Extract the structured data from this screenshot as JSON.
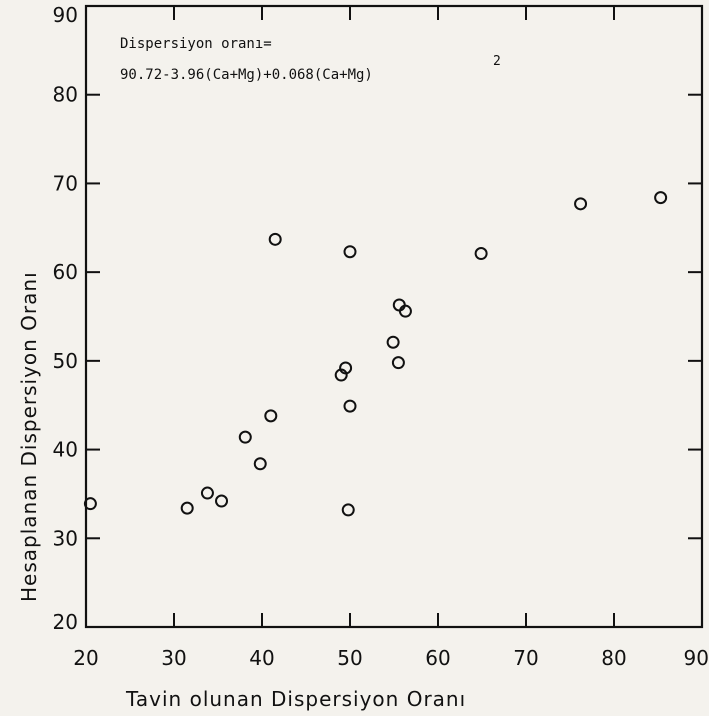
{
  "chart_data": {
    "type": "scatter",
    "title": "",
    "xlabel": "Tavin olunan Dispersiyon Oranı",
    "ylabel": "Hesaplanan Dispersiyon Oranı",
    "xlim": [
      20,
      90
    ],
    "ylim": [
      20,
      90
    ],
    "x_ticks": [
      "20",
      "30",
      "40",
      "50",
      "60",
      "70",
      "80",
      "90"
    ],
    "y_ticks": [
      "20",
      "30",
      "40",
      "50",
      "60",
      "70",
      "80",
      "90"
    ],
    "grid": false,
    "legend": "none",
    "annotation": {
      "line1": "Dispersiyon oranı=",
      "line2": "90.72-3.96(Ca+Mg)+0.068(Ca+Mg)",
      "exponent": "2"
    },
    "points": [
      {
        "x": 20.5,
        "y": 33.9
      },
      {
        "x": 31.5,
        "y": 33.4
      },
      {
        "x": 33.8,
        "y": 35.1
      },
      {
        "x": 35.4,
        "y": 34.2
      },
      {
        "x": 38.1,
        "y": 41.4
      },
      {
        "x": 39.8,
        "y": 38.4
      },
      {
        "x": 41.0,
        "y": 43.8
      },
      {
        "x": 41.5,
        "y": 63.7
      },
      {
        "x": 49.0,
        "y": 48.4
      },
      {
        "x": 49.5,
        "y": 49.2
      },
      {
        "x": 49.8,
        "y": 33.2
      },
      {
        "x": 50.0,
        "y": 44.9
      },
      {
        "x": 50.0,
        "y": 62.3
      },
      {
        "x": 54.9,
        "y": 52.1
      },
      {
        "x": 55.5,
        "y": 49.8
      },
      {
        "x": 55.6,
        "y": 56.3
      },
      {
        "x": 56.3,
        "y": 55.6
      },
      {
        "x": 64.9,
        "y": 62.1
      },
      {
        "x": 76.2,
        "y": 67.7
      },
      {
        "x": 85.3,
        "y": 68.4
      }
    ]
  }
}
